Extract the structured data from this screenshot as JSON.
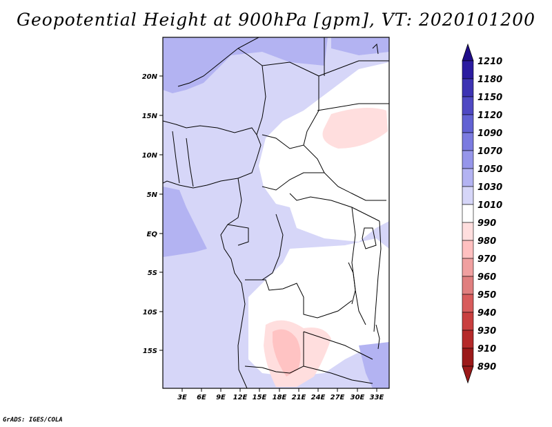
{
  "title": "Geopotential Height at 900hPa [gpm], VT: 2020101200",
  "credit": "GrADS: IGES/COLA",
  "map": {
    "lon_range": [
      0,
      35
    ],
    "lat_range": [
      -20,
      25
    ],
    "lat_ticks": [
      "20N",
      "15N",
      "10N",
      "5N",
      "EQ",
      "5S",
      "10S",
      "15S"
    ],
    "lon_ticks": [
      "3E",
      "6E",
      "9E",
      "12E",
      "15E",
      "18E",
      "21E",
      "24E",
      "27E",
      "30E",
      "33E"
    ]
  },
  "colorbar": {
    "levels": [
      "1210",
      "1180",
      "1150",
      "1120",
      "1090",
      "1070",
      "1050",
      "1030",
      "1010",
      "990",
      "980",
      "970",
      "960",
      "950",
      "940",
      "930",
      "910",
      "890"
    ],
    "colors": [
      "#200d8a",
      "#2b1ca0",
      "#3d33b3",
      "#4f49c3",
      "#6262d3",
      "#7b7be0",
      "#9696ea",
      "#b3b3f2",
      "#d6d6f8",
      "#ffffff",
      "#ffdede",
      "#ffc0c0",
      "#f0a0a0",
      "#e07f7f",
      "#d85c5c",
      "#c93f3f",
      "#b52a2a",
      "#9b1919"
    ]
  }
}
